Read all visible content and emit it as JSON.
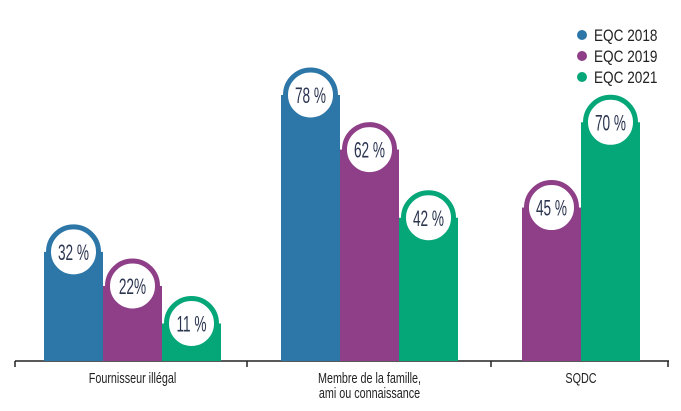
{
  "chart_data": {
    "type": "bar",
    "title": "",
    "xlabel": "",
    "ylabel": "",
    "ylim": [
      0,
      90
    ],
    "grid": false,
    "legend_placement": "top-right",
    "categories": [
      [
        "Fournisseur illégal"
      ],
      [
        "Membre de la famille,",
        "ami ou connaissance"
      ],
      [
        "SQDC"
      ]
    ],
    "series": [
      {
        "name": "EQC 2018",
        "color": "#2c76a8",
        "values": [
          32,
          78,
          null
        ],
        "labels": [
          "32 %",
          "78 %",
          ""
        ]
      },
      {
        "name": "EQC 2019",
        "color": "#8e3f87",
        "values": [
          22,
          62,
          45
        ],
        "labels": [
          "22%",
          "62 %",
          "45 %"
        ]
      },
      {
        "name": "EQC 2021",
        "color": "#05a678",
        "values": [
          11,
          42,
          70
        ],
        "labels": [
          "11 %",
          "42 %",
          "70 %"
        ]
      }
    ],
    "label_color": "#2b3550"
  }
}
